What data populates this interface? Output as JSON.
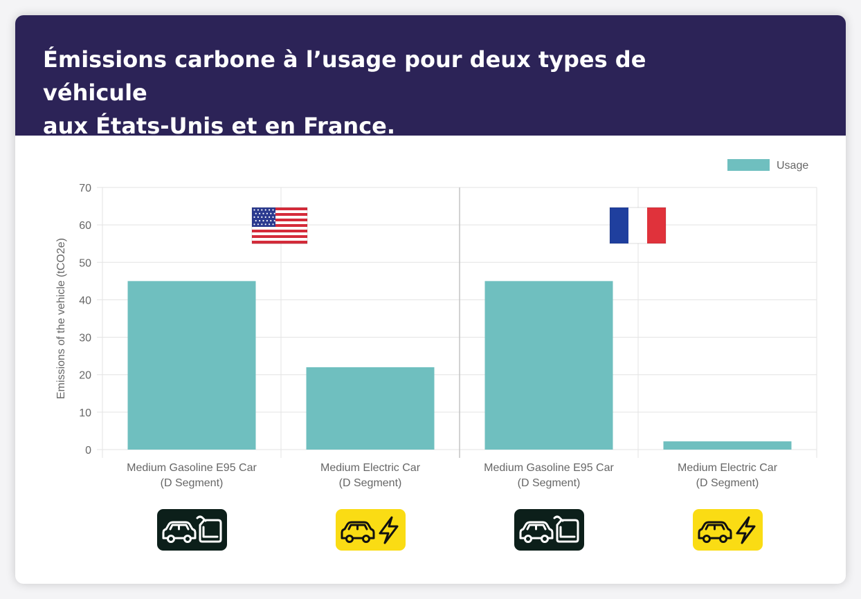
{
  "title_lines": [
    "Émissions carbone à l’usage pour deux types de véhicule",
    "aux États-Unis et en France."
  ],
  "chart_data": {
    "type": "bar",
    "title": "Émissions carbone à l’usage pour deux types de véhicule aux États-Unis et en France.",
    "ylabel": "Emissions of the vehicle (tCO2e)",
    "ylim": [
      0,
      70
    ],
    "yticks": [
      0,
      10,
      20,
      30,
      40,
      50,
      60,
      70
    ],
    "grid": true,
    "legend": {
      "position": "top-right"
    },
    "categories": [
      "Medium Gasoline E95 Car (D Segment)",
      "Medium Electric Car (D Segment)",
      "Medium Gasoline E95 Car (D Segment)",
      "Medium Electric Car (D Segment)"
    ],
    "category_lines": [
      [
        "Medium Gasoline E95 Car",
        "(D Segment)"
      ],
      [
        "Medium Electric Car",
        "(D Segment)"
      ],
      [
        "Medium Gasoline E95 Car",
        "(D Segment)"
      ],
      [
        "Medium Electric Car",
        "(D Segment)"
      ]
    ],
    "groups": [
      {
        "flag": "united-states-flag",
        "categories": [
          0,
          1
        ]
      },
      {
        "flag": "france-flag",
        "categories": [
          2,
          3
        ]
      }
    ],
    "series": [
      {
        "name": "Usage",
        "color": "#6fbfbf",
        "values": [
          45,
          22,
          45,
          2.2
        ]
      }
    ]
  },
  "badges": [
    {
      "icon": "gasoline-car-icon",
      "background": "#0c1f1a",
      "color": "#ffffff"
    },
    {
      "icon": "electric-car-icon",
      "background": "#fadc14",
      "color": "#111111"
    },
    {
      "icon": "gasoline-car-icon",
      "background": "#0c1f1a",
      "color": "#ffffff"
    },
    {
      "icon": "electric-car-icon",
      "background": "#fadc14",
      "color": "#111111"
    }
  ],
  "colors": {
    "header_background": "#2c2357",
    "header_text": "#ffffff",
    "grid": "#e3e3e3",
    "axis_text": "#666666"
  }
}
